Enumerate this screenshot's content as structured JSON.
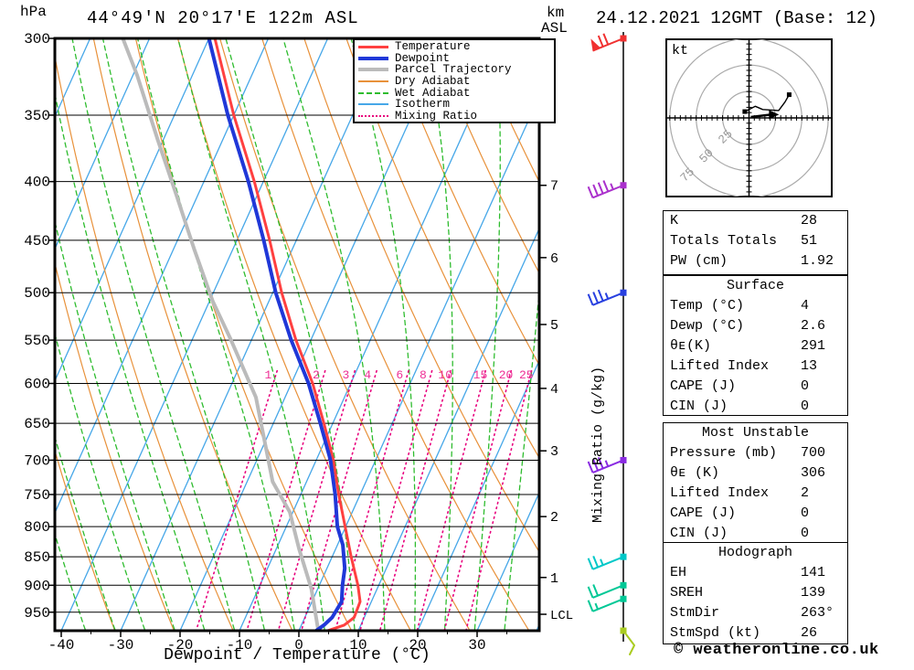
{
  "header": {
    "station": "44°49'N 20°17'E 122m ASL",
    "datetime": "24.12.2021 12GMT (Base: 12)",
    "left_unit": "hPa",
    "right_unit_1": "km",
    "right_unit_2": "ASL"
  },
  "footer": {
    "copyright": "© weatheronline.co.uk"
  },
  "axes": {
    "xlabel": "Dewpoint / Temperature (°C)",
    "x_ticks": [
      -40,
      -30,
      -20,
      -10,
      0,
      10,
      20,
      30
    ],
    "pressure_ticks": [
      300,
      350,
      400,
      450,
      500,
      550,
      600,
      650,
      700,
      750,
      800,
      850,
      900,
      950
    ],
    "km_ticks": [
      {
        "km": "7",
        "p": 403
      },
      {
        "km": "6",
        "p": 466
      },
      {
        "km": "5",
        "p": 533
      },
      {
        "km": "4",
        "p": 606
      },
      {
        "km": "3",
        "p": 687
      },
      {
        "km": "2",
        "p": 784
      },
      {
        "km": "1",
        "p": 886
      }
    ],
    "lcl_label": "LCL",
    "lcl_p": 954,
    "mixing_axis_label": "Mixing Ratio (g/kg)",
    "mixing_values": [
      1,
      2,
      3,
      4,
      6,
      8,
      10,
      15,
      20,
      25
    ],
    "mixing_label_color": "#ee2f95"
  },
  "legend": {
    "items": [
      {
        "label": "Temperature",
        "color": "#ff4040",
        "style": "solid",
        "thick": 3
      },
      {
        "label": "Dewpoint",
        "color": "#2038d8",
        "style": "solid",
        "thick": 4
      },
      {
        "label": "Parcel Trajectory",
        "color": "#bbbbbb",
        "style": "solid",
        "thick": 4
      },
      {
        "label": "Dry Adiabat",
        "color": "#e8913a",
        "style": "solid",
        "thick": 2
      },
      {
        "label": "Wet Adiabat",
        "color": "#2ebc2e",
        "style": "dashed",
        "thick": 2
      },
      {
        "label": "Isotherm",
        "color": "#46a7e8",
        "style": "solid",
        "thick": 2
      },
      {
        "label": "Mixing Ratio",
        "color": "#e8007d",
        "style": "dotted",
        "thick": 2
      }
    ]
  },
  "chart_data": {
    "type": "skewt-sounding",
    "y_axis": {
      "unit": "hPa",
      "scale": "log",
      "top": 300,
      "bottom": 990
    },
    "x_axis": {
      "unit": "°C",
      "bottom_range": [
        -41,
        40.5
      ]
    },
    "temperature_C_by_hPa": [
      [
        300,
        -59
      ],
      [
        350,
        -50
      ],
      [
        400,
        -41.5
      ],
      [
        450,
        -34.5
      ],
      [
        500,
        -28.5
      ],
      [
        550,
        -22.5
      ],
      [
        600,
        -16.4
      ],
      [
        650,
        -11.5
      ],
      [
        700,
        -7.1
      ],
      [
        750,
        -3.6
      ],
      [
        800,
        -0.1
      ],
      [
        850,
        3.2
      ],
      [
        900,
        6.5
      ],
      [
        930,
        8.1
      ],
      [
        960,
        8.3
      ],
      [
        975,
        7.2
      ],
      [
        990,
        4
      ]
    ],
    "dewpoint_C_by_hPa": [
      [
        300,
        -60
      ],
      [
        350,
        -51
      ],
      [
        400,
        -42.5
      ],
      [
        450,
        -35.5
      ],
      [
        500,
        -29.5
      ],
      [
        550,
        -23.3
      ],
      [
        600,
        -17.1
      ],
      [
        650,
        -12.1
      ],
      [
        700,
        -7.6
      ],
      [
        750,
        -4.2
      ],
      [
        800,
        -1.4
      ],
      [
        830,
        0.9
      ],
      [
        870,
        3.0
      ],
      [
        900,
        3.9
      ],
      [
        930,
        5.0
      ],
      [
        960,
        4.6
      ],
      [
        975,
        3.8
      ],
      [
        990,
        2.6
      ]
    ],
    "parcel_C_by_hPa": [
      [
        979,
        2.9
      ],
      [
        906,
        -1.1
      ],
      [
        836,
        -6.2
      ],
      [
        777,
        -10.5
      ],
      [
        731,
        -15.7
      ],
      [
        617,
        -24.9
      ],
      [
        548,
        -33.7
      ],
      [
        509,
        -39.4
      ],
      [
        459,
        -46.4
      ],
      [
        411,
        -53.6
      ],
      [
        368,
        -60.9
      ],
      [
        323,
        -69.3
      ],
      [
        300,
        -74.5
      ]
    ]
  },
  "wind_barbs": [
    {
      "p": 300,
      "speed_kt": 70,
      "color": "#f03030"
    },
    {
      "p": 403,
      "speed_kt": 45,
      "color": "#aa30cc"
    },
    {
      "p": 500,
      "speed_kt": 35,
      "color": "#2840e0"
    },
    {
      "p": 700,
      "speed_kt": 35,
      "color": "#8a2be2"
    },
    {
      "p": 850,
      "speed_kt": 25,
      "color": "#00c8c8"
    },
    {
      "p": 900,
      "speed_kt": 20,
      "color": "#00c896"
    },
    {
      "p": 925,
      "speed_kt": 15,
      "color": "#00c896"
    },
    {
      "p": "sfc",
      "speed_kt": 5,
      "color": "#aacc20"
    }
  ],
  "hodograph": {
    "unit_label": "kt",
    "rings_kt": [
      25,
      50,
      75
    ],
    "trace_kt": [
      [
        -4,
        6
      ],
      [
        6,
        11
      ],
      [
        13,
        8
      ],
      [
        28,
        7
      ],
      [
        34,
        15
      ],
      [
        38,
        22
      ]
    ],
    "storm_motion": {
      "dir_deg": 263,
      "speed_kt": 26
    }
  },
  "tables": [
    {
      "title": "",
      "rows": [
        [
          "K",
          "28"
        ],
        [
          "Totals Totals",
          "51"
        ],
        [
          "PW (cm)",
          "1.92"
        ]
      ]
    },
    {
      "title": "Surface",
      "rows": [
        [
          "Temp (°C)",
          "4"
        ],
        [
          "Dewp (°C)",
          "2.6"
        ],
        [
          "θᴇ(K)",
          "291"
        ],
        [
          "Lifted Index",
          "13"
        ],
        [
          "CAPE (J)",
          "0"
        ],
        [
          "CIN (J)",
          "0"
        ]
      ]
    },
    {
      "title": "Most Unstable",
      "rows": [
        [
          "Pressure (mb)",
          "700"
        ],
        [
          "θᴇ (K)",
          "306"
        ],
        [
          "Lifted Index",
          "2"
        ],
        [
          "CAPE (J)",
          "0"
        ],
        [
          "CIN (J)",
          "0"
        ]
      ]
    },
    {
      "title": "Hodograph",
      "rows": [
        [
          "EH",
          "141"
        ],
        [
          "SREH",
          "139"
        ],
        [
          "StmDir",
          "263°"
        ],
        [
          "StmSpd (kt)",
          "26"
        ]
      ]
    }
  ]
}
